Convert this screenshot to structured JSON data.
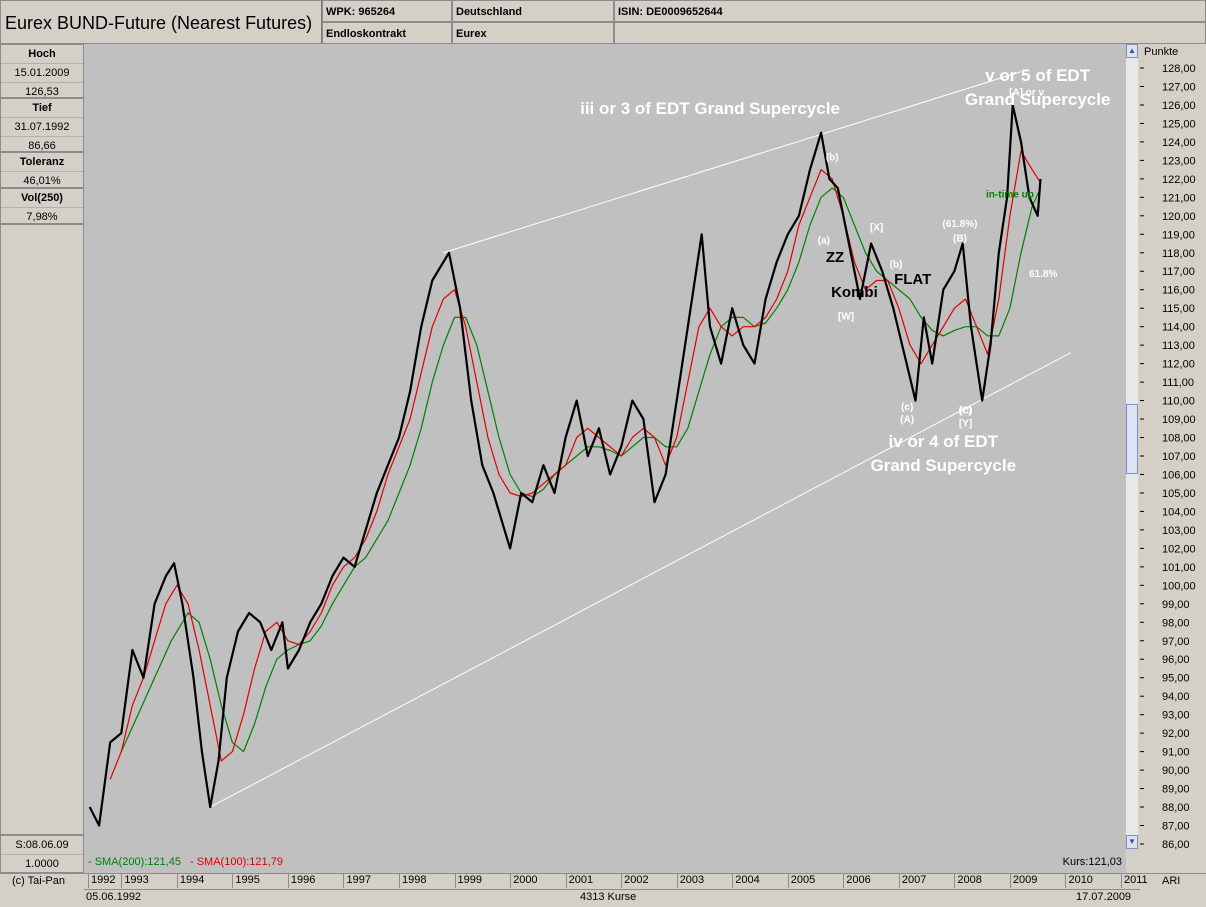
{
  "header": {
    "title": "Eurex BUND-Future (Nearest Futures)",
    "wpk": "WPK: 965264",
    "contract": "Endloskontrakt",
    "country": "Deutschland",
    "exchange": "Eurex",
    "isin": "ISIN: DE0009652644"
  },
  "sidebar": {
    "high_label": "Hoch",
    "high_date": "15.01.2009",
    "high_value": "126,53",
    "low_label": "Tief",
    "low_date": "31.07.1992",
    "low_value": "86,66",
    "tol_label": "Toleranz",
    "tol_value": "46,01%",
    "vol_label": "Vol(250)",
    "vol_value": "7,98%",
    "s_date": "S:08.06.09",
    "s_value": "1.0000"
  },
  "footer": {
    "copyright": "(c) Tai-Pan",
    "start_date": "05.06.1992",
    "count": "4313 Kurse",
    "end_date": "17.07.2009",
    "ari": "ARI",
    "kurs": "Kurs:121,03",
    "sma200": "- SMA(200):121,45",
    "sma100": "- SMA(100):121,79"
  },
  "colors": {
    "price": "#000000",
    "sma200": "#008000",
    "sma100": "#e00000",
    "annotation": "#ffffff",
    "chart_bg": "#c0c0c0"
  },
  "chart_data": {
    "type": "line",
    "ylabel": "Punkte",
    "ylim": [
      86,
      128
    ],
    "yticks": [
      "86,00",
      "87,00",
      "88,00",
      "89,00",
      "90,00",
      "91,00",
      "92,00",
      "93,00",
      "94,00",
      "95,00",
      "96,00",
      "97,00",
      "98,00",
      "99,00",
      "100,00",
      "101,00",
      "102,00",
      "103,00",
      "104,00",
      "105,00",
      "106,00",
      "107,00",
      "108,00",
      "109,00",
      "110,00",
      "111,00",
      "112,00",
      "113,00",
      "114,00",
      "115,00",
      "116,00",
      "117,00",
      "118,00",
      "119,00",
      "120,00",
      "121,00",
      "122,00",
      "123,00",
      "124,00",
      "125,00",
      "126,00",
      "127,00",
      "128,00"
    ],
    "xticks": [
      "1992",
      "1993",
      "1994",
      "1995",
      "1996",
      "1997",
      "1998",
      "1999",
      "2000",
      "2001",
      "2002",
      "2003",
      "2004",
      "2005",
      "2006",
      "2007",
      "2008",
      "2009",
      "2010",
      "2011"
    ],
    "xlim": [
      1992.4,
      2011.0
    ],
    "series": [
      {
        "name": "",
        "color": "#000000",
        "x": [
          1992.43,
          1992.6,
          1992.8,
          1993.0,
          1993.2,
          1993.4,
          1993.6,
          1993.8,
          1993.95,
          1994.1,
          1994.3,
          1994.45,
          1994.6,
          1994.75,
          1994.9,
          1995.1,
          1995.3,
          1995.5,
          1995.7,
          1995.9,
          1996.0,
          1996.2,
          1996.4,
          1996.6,
          1996.8,
          1997.0,
          1997.2,
          1997.4,
          1997.6,
          1997.8,
          1998.0,
          1998.2,
          1998.4,
          1998.6,
          1998.8,
          1998.9,
          1999.1,
          1999.3,
          1999.5,
          1999.7,
          1999.9,
          2000.0,
          2000.2,
          2000.4,
          2000.6,
          2000.8,
          2001.0,
          2001.2,
          2001.4,
          2001.6,
          2001.8,
          2002.0,
          2002.2,
          2002.4,
          2002.6,
          2002.8,
          2002.9,
          2003.1,
          2003.3,
          2003.45,
          2003.6,
          2003.8,
          2004.0,
          2004.2,
          2004.4,
          2004.6,
          2004.8,
          2005.0,
          2005.2,
          2005.4,
          2005.6,
          2005.75,
          2005.9,
          2006.1,
          2006.3,
          2006.5,
          2006.7,
          2006.9,
          2007.1,
          2007.3,
          2007.45,
          2007.6,
          2007.8,
          2008.0,
          2008.15,
          2008.3,
          2008.5,
          2008.65,
          2008.8,
          2008.95,
          2009.05,
          2009.2,
          2009.35,
          2009.5,
          2009.55
        ],
        "y": [
          88.0,
          87.0,
          91.5,
          92.0,
          96.5,
          95.0,
          99.0,
          100.5,
          101.2,
          99.0,
          95.0,
          91.0,
          88.0,
          90.5,
          95.0,
          97.5,
          98.5,
          98.0,
          96.5,
          98.0,
          95.5,
          96.5,
          98.0,
          99.0,
          100.5,
          101.5,
          101.0,
          103.0,
          105.0,
          106.5,
          108.0,
          110.5,
          114.0,
          116.5,
          117.5,
          118.0,
          115.0,
          110.0,
          106.5,
          105.0,
          103.0,
          102.0,
          105.0,
          104.5,
          106.5,
          105.0,
          108.0,
          110.0,
          107.0,
          108.5,
          106.0,
          107.5,
          110.0,
          109.0,
          104.5,
          106.0,
          108.0,
          112.0,
          116.0,
          119.0,
          114.0,
          112.0,
          115.0,
          113.0,
          112.0,
          115.5,
          117.5,
          119.0,
          120.0,
          122.5,
          124.5,
          122.0,
          121.5,
          118.5,
          115.5,
          118.5,
          117.0,
          115.0,
          112.5,
          110.0,
          114.5,
          112.0,
          116.0,
          117.0,
          118.5,
          114.0,
          110.0,
          113.0,
          118.0,
          121.0,
          126.0,
          124.0,
          121.0,
          120.0,
          122.0
        ]
      },
      {
        "name": "SMA(100)",
        "color": "#e00000",
        "x": [
          1992.8,
          1993.0,
          1993.2,
          1993.4,
          1993.6,
          1993.8,
          1994.0,
          1994.2,
          1994.4,
          1994.6,
          1994.8,
          1995.0,
          1995.2,
          1995.4,
          1995.6,
          1995.8,
          1996.0,
          1996.2,
          1996.4,
          1996.6,
          1996.8,
          1997.0,
          1997.2,
          1997.4,
          1997.6,
          1997.8,
          1998.0,
          1998.2,
          1998.4,
          1998.6,
          1998.8,
          1999.0,
          1999.2,
          1999.4,
          1999.6,
          1999.8,
          2000.0,
          2000.2,
          2000.4,
          2000.6,
          2000.8,
          2001.0,
          2001.2,
          2001.4,
          2001.6,
          2001.8,
          2002.0,
          2002.2,
          2002.4,
          2002.6,
          2002.8,
          2003.0,
          2003.2,
          2003.4,
          2003.6,
          2003.8,
          2004.0,
          2004.2,
          2004.4,
          2004.6,
          2004.8,
          2005.0,
          2005.2,
          2005.4,
          2005.6,
          2005.8,
          2006.0,
          2006.2,
          2006.4,
          2006.6,
          2006.8,
          2007.0,
          2007.2,
          2007.4,
          2007.6,
          2007.8,
          2008.0,
          2008.2,
          2008.4,
          2008.6,
          2008.8,
          2009.0,
          2009.2,
          2009.4,
          2009.55
        ],
        "y": [
          89.5,
          91.0,
          93.5,
          95.0,
          97.0,
          99.0,
          100.0,
          99.0,
          96.5,
          93.5,
          90.5,
          91.0,
          93.0,
          95.5,
          97.5,
          98.0,
          97.0,
          96.8,
          97.5,
          98.5,
          100.0,
          101.0,
          101.5,
          102.5,
          104.0,
          106.0,
          107.5,
          109.0,
          111.5,
          114.0,
          115.5,
          116.0,
          114.0,
          111.0,
          108.0,
          106.0,
          105.0,
          104.8,
          105.0,
          105.5,
          106.0,
          106.5,
          108.0,
          108.5,
          108.0,
          107.5,
          107.0,
          108.0,
          108.5,
          108.0,
          106.5,
          108.0,
          111.0,
          114.0,
          115.0,
          114.0,
          113.5,
          114.0,
          114.0,
          114.5,
          115.5,
          117.0,
          119.5,
          121.0,
          122.5,
          122.0,
          120.0,
          117.5,
          116.0,
          116.5,
          116.5,
          115.0,
          113.0,
          112.0,
          113.0,
          114.0,
          115.0,
          115.5,
          114.0,
          112.5,
          115.5,
          120.0,
          123.5,
          122.5,
          121.8
        ]
      },
      {
        "name": "SMA(200)",
        "color": "#008000",
        "x": [
          1993.0,
          1993.3,
          1993.6,
          1993.9,
          1994.2,
          1994.4,
          1994.6,
          1994.8,
          1995.0,
          1995.2,
          1995.4,
          1995.6,
          1995.8,
          1996.0,
          1996.2,
          1996.4,
          1996.6,
          1996.8,
          1997.0,
          1997.2,
          1997.4,
          1997.6,
          1997.8,
          1998.0,
          1998.2,
          1998.4,
          1998.6,
          1998.8,
          1999.0,
          1999.2,
          1999.4,
          1999.6,
          1999.8,
          2000.0,
          2000.2,
          2000.4,
          2000.6,
          2000.8,
          2001.0,
          2001.2,
          2001.4,
          2001.6,
          2001.8,
          2002.0,
          2002.2,
          2002.4,
          2002.6,
          2002.8,
          2003.0,
          2003.2,
          2003.4,
          2003.6,
          2003.8,
          2004.0,
          2004.2,
          2004.4,
          2004.6,
          2004.8,
          2005.0,
          2005.2,
          2005.4,
          2005.6,
          2005.8,
          2006.0,
          2006.2,
          2006.4,
          2006.6,
          2006.8,
          2007.0,
          2007.2,
          2007.4,
          2007.6,
          2007.8,
          2008.0,
          2008.2,
          2008.4,
          2008.6,
          2008.8,
          2009.0,
          2009.2,
          2009.4,
          2009.55
        ],
        "y": [
          91.0,
          93.0,
          95.0,
          97.0,
          98.5,
          98.0,
          96.0,
          93.5,
          91.5,
          91.0,
          92.5,
          94.5,
          96.0,
          96.5,
          96.8,
          97.0,
          97.8,
          99.0,
          100.0,
          101.0,
          101.5,
          102.5,
          103.5,
          105.0,
          106.5,
          108.5,
          111.0,
          113.0,
          114.5,
          114.5,
          113.0,
          110.5,
          108.0,
          106.0,
          105.0,
          104.8,
          105.2,
          106.0,
          106.5,
          107.0,
          107.5,
          107.5,
          107.3,
          107.0,
          107.5,
          108.0,
          108.0,
          107.5,
          107.5,
          108.5,
          110.5,
          112.5,
          114.0,
          114.5,
          114.5,
          114.0,
          114.2,
          115.0,
          116.0,
          117.5,
          119.5,
          121.0,
          121.5,
          121.0,
          119.5,
          118.0,
          117.0,
          116.5,
          116.0,
          115.5,
          114.5,
          113.8,
          113.5,
          113.8,
          114.0,
          114.0,
          113.5,
          113.5,
          115.0,
          118.0,
          120.5,
          121.5
        ]
      }
    ],
    "trendlines": [
      {
        "from": [
          1998.8,
          118.0
        ],
        "to": [
          2009.2,
          127.8
        ]
      },
      {
        "from": [
          1994.6,
          88.0
        ],
        "to": [
          2010.1,
          112.6
        ]
      }
    ],
    "annotations": [
      {
        "text": "v or 5 of EDT",
        "x": 2009.5,
        "y": 127.3,
        "color": "#ffffff",
        "size": "large"
      },
      {
        "text": "Grand Supercycle",
        "x": 2009.5,
        "y": 126.0,
        "color": "#ffffff",
        "size": "large"
      },
      {
        "text": "iii or 3 of EDT Grand Supercycle",
        "x": 2003.6,
        "y": 125.5,
        "color": "#ffffff",
        "size": "large"
      },
      {
        "text": "iv or 4 of EDT",
        "x": 2007.8,
        "y": 107.5,
        "color": "#ffffff",
        "size": "large"
      },
      {
        "text": "Grand Supercycle",
        "x": 2007.8,
        "y": 106.2,
        "color": "#ffffff",
        "size": "large"
      },
      {
        "text": "[A] or v",
        "x": 2009.3,
        "y": 126.5,
        "color": "#ffffff",
        "size": "small"
      },
      {
        "text": "(b)",
        "x": 2005.8,
        "y": 123.0,
        "color": "#ffffff",
        "size": "small"
      },
      {
        "text": "(a)",
        "x": 2005.65,
        "y": 118.5,
        "color": "#ffffff",
        "size": "small"
      },
      {
        "text": "[X]",
        "x": 2006.6,
        "y": 119.2,
        "color": "#ffffff",
        "size": "small"
      },
      {
        "text": "(b)",
        "x": 2006.95,
        "y": 117.2,
        "color": "#ffffff",
        "size": "small"
      },
      {
        "text": "(61.8%)",
        "x": 2008.1,
        "y": 119.4,
        "color": "#ffffff",
        "size": "small"
      },
      {
        "text": "(B)",
        "x": 2008.1,
        "y": 118.6,
        "color": "#ffffff",
        "size": "small"
      },
      {
        "text": "61.8%",
        "x": 2009.6,
        "y": 116.7,
        "color": "#ffffff",
        "size": "small"
      },
      {
        "text": "[W]",
        "x": 2006.05,
        "y": 114.4,
        "color": "#ffffff",
        "size": "small"
      },
      {
        "text": "(c)",
        "x": 2007.15,
        "y": 109.5,
        "color": "#ffffff",
        "size": "small"
      },
      {
        "text": "(A)",
        "x": 2007.15,
        "y": 108.8,
        "color": "#ffffff",
        "size": "small"
      },
      {
        "text": "(c)",
        "x": 2008.2,
        "y": 109.3,
        "color": "#ffffff",
        "size": "small"
      },
      {
        "text": "(C)",
        "x": 2008.2,
        "y": 109.3,
        "color": "#ffffff",
        "size": "small"
      },
      {
        "text": "[Y]",
        "x": 2008.2,
        "y": 108.6,
        "color": "#ffffff",
        "size": "small"
      },
      {
        "text": "ZZ",
        "x": 2005.85,
        "y": 117.5,
        "color": "#000000",
        "size": "medium"
      },
      {
        "text": "Kombi",
        "x": 2006.2,
        "y": 115.6,
        "color": "#000000",
        "size": "medium"
      },
      {
        "text": "FLAT",
        "x": 2007.25,
        "y": 116.3,
        "color": "#000000",
        "size": "medium"
      },
      {
        "text": "in-time up",
        "x": 2009.0,
        "y": 121.0,
        "color": "#008000",
        "size": "small"
      }
    ]
  }
}
